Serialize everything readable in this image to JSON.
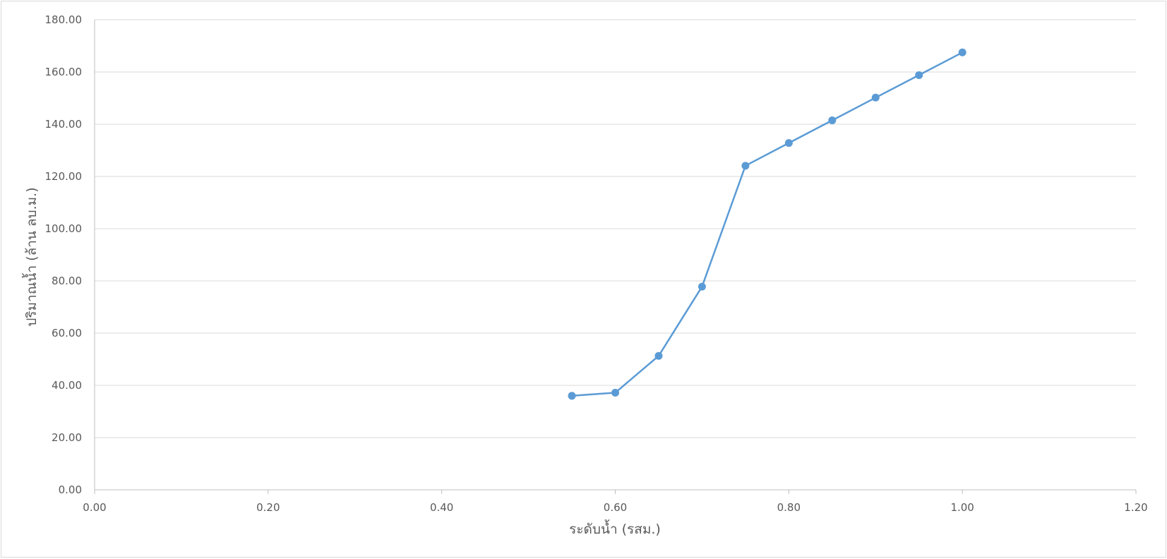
{
  "chart_data": {
    "type": "scatter",
    "title": "",
    "xlabel": "ระดับน้ำ (รสม.)",
    "ylabel": "ปริมาณน้ำ (ล้าน ลบ.ม.)",
    "xlim": [
      0,
      1.2
    ],
    "ylim": [
      0,
      180
    ],
    "x_ticks": [
      "0.00",
      "0.20",
      "0.40",
      "0.60",
      "0.80",
      "1.00",
      "1.20"
    ],
    "y_ticks": [
      "0.00",
      "20.00",
      "40.00",
      "60.00",
      "80.00",
      "100.00",
      "120.00",
      "140.00",
      "160.00",
      "180.00"
    ],
    "grid": "horizontal",
    "legend": "none",
    "series": [
      {
        "color": "#5b9bd5",
        "points": [
          {
            "x": 0.55,
            "y": 36.0
          },
          {
            "x": 0.6,
            "y": 37.2
          },
          {
            "x": 0.65,
            "y": 51.3
          },
          {
            "x": 0.7,
            "y": 77.8
          },
          {
            "x": 0.75,
            "y": 124.1
          },
          {
            "x": 0.8,
            "y": 132.8
          },
          {
            "x": 0.85,
            "y": 141.5
          },
          {
            "x": 0.9,
            "y": 150.2
          },
          {
            "x": 0.95,
            "y": 158.8
          },
          {
            "x": 1.0,
            "y": 167.5
          }
        ]
      }
    ],
    "colors": {
      "gridline": "#d9d9d9",
      "axis": "#bfbfbf",
      "text": "#595959"
    }
  }
}
